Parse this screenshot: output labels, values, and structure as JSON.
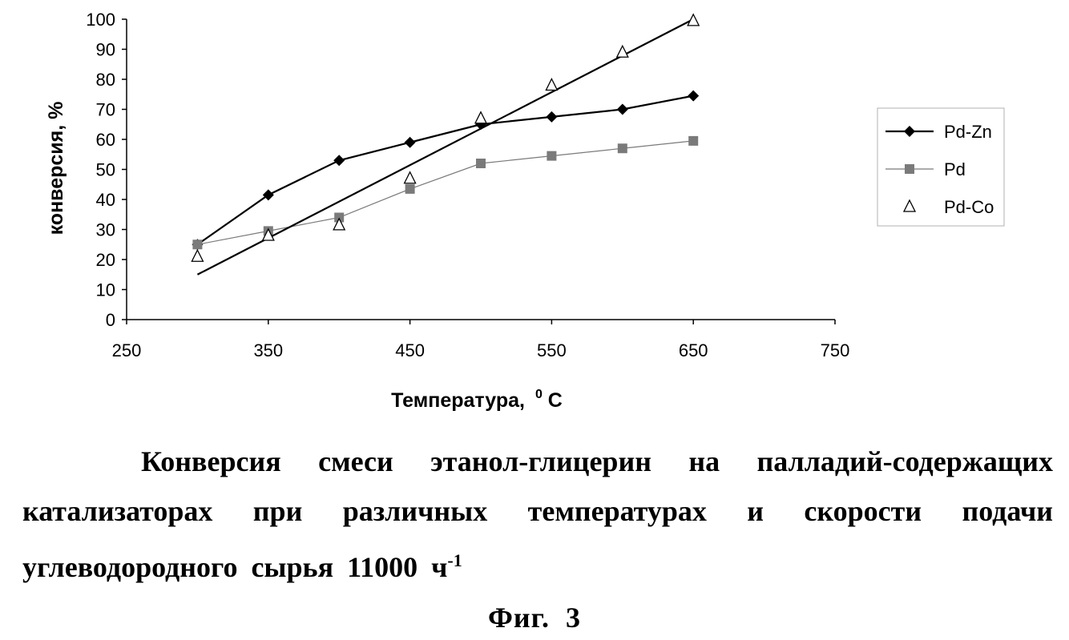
{
  "chart_data": {
    "type": "line",
    "xlabel": "Температура,",
    "xlabel_sup": "0",
    "xlabel_unit": "C",
    "ylabel": "конверсия, %",
    "xlim": [
      250,
      750
    ],
    "ylim": [
      0,
      100
    ],
    "x_ticks": [
      "250",
      "350",
      "450",
      "550",
      "650",
      "750"
    ],
    "y_ticks": [
      "0",
      "10",
      "20",
      "30",
      "40",
      "50",
      "60",
      "70",
      "80",
      "90",
      "100"
    ],
    "grid": false,
    "legend_position": "right",
    "series": [
      {
        "name": "Pd-Zn",
        "marker": "diamond",
        "color": "#000000",
        "x": [
          300,
          350,
          400,
          450,
          500,
          550,
          600,
          650
        ],
        "values": [
          25,
          41.5,
          53,
          59,
          65,
          67.5,
          70,
          74.5
        ]
      },
      {
        "name": "Pd",
        "marker": "square",
        "color": "#7a7a7a",
        "x": [
          300,
          350,
          400,
          450,
          500,
          550,
          600,
          650
        ],
        "values": [
          25,
          29.5,
          34,
          43.5,
          52,
          54.5,
          57,
          59.5
        ]
      },
      {
        "name": "Pd-Co",
        "marker": "triangle-open",
        "color": "#000000",
        "x": [
          300,
          350,
          400,
          450,
          500,
          550,
          600,
          650
        ],
        "values": [
          21,
          28,
          31.5,
          47,
          67,
          78,
          89,
          99.5
        ],
        "trendline": {
          "x": [
            300,
            650
          ],
          "values": [
            15,
            100
          ]
        }
      }
    ]
  },
  "caption": {
    "text": "Конверсия смеси этанол-глицерин на палладий-содержащих катализаторах при различных температурах и скорости подачи углеводородного сырья 11000 ч",
    "sup": "-1"
  },
  "figure_label": "Фиг. 3"
}
